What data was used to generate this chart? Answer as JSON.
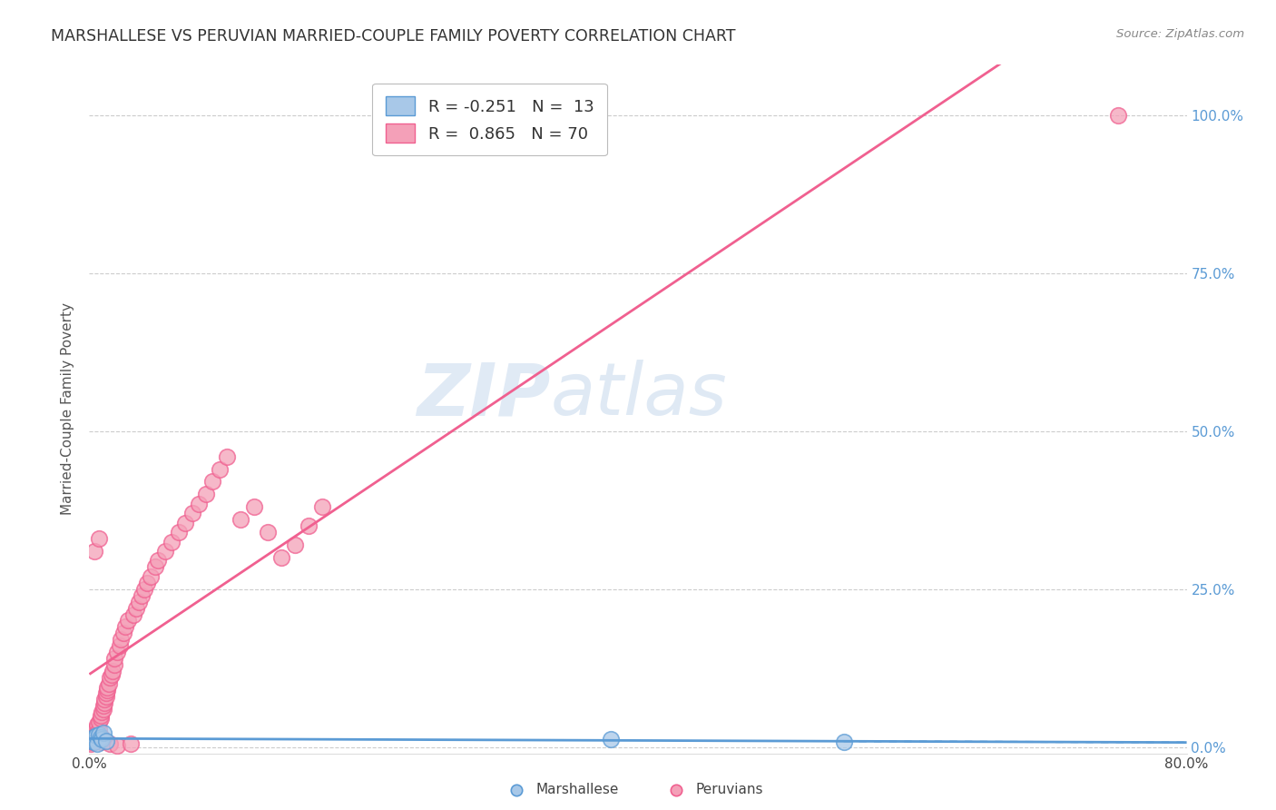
{
  "title": "MARSHALLESE VS PERUVIAN MARRIED-COUPLE FAMILY POVERTY CORRELATION CHART",
  "source": "Source: ZipAtlas.com",
  "ylabel": "Married-Couple Family Poverty",
  "legend_marshallese": "Marshallese",
  "legend_peruvians": "Peruvians",
  "legend_r_marsh": "-0.251",
  "legend_n_marsh": "13",
  "legend_r_peru": "0.865",
  "legend_n_peru": "70",
  "xlim": [
    0.0,
    0.8
  ],
  "ylim": [
    -0.01,
    1.08
  ],
  "yticks": [
    0.0,
    0.25,
    0.5,
    0.75,
    1.0
  ],
  "ytick_labels": [
    "0.0%",
    "25.0%",
    "50.0%",
    "75.0%",
    "100.0%"
  ],
  "xticks": [
    0.0,
    0.1,
    0.2,
    0.3,
    0.4,
    0.5,
    0.6,
    0.7,
    0.8
  ],
  "xtick_labels_show": [
    "0.0%",
    "",
    "",
    "",
    "",
    "",
    "",
    "",
    "80.0%"
  ],
  "watermark_zip": "ZIP",
  "watermark_atlas": "atlas",
  "color_marsh": "#a8c8e8",
  "color_peru": "#f4a0b8",
  "color_line_marsh": "#5b9bd5",
  "color_line_peru": "#f06090",
  "background": "#ffffff",
  "marsh_x": [
    0.001,
    0.002,
    0.003,
    0.004,
    0.005,
    0.006,
    0.007,
    0.008,
    0.009,
    0.01,
    0.012,
    0.38,
    0.55
  ],
  "marsh_y": [
    0.01,
    0.012,
    0.015,
    0.008,
    0.018,
    0.005,
    0.02,
    0.015,
    0.012,
    0.022,
    0.01,
    0.012,
    0.008
  ],
  "peru_x": [
    0.001,
    0.002,
    0.002,
    0.003,
    0.003,
    0.004,
    0.004,
    0.005,
    0.005,
    0.006,
    0.006,
    0.007,
    0.007,
    0.008,
    0.008,
    0.008,
    0.009,
    0.009,
    0.01,
    0.01,
    0.011,
    0.011,
    0.012,
    0.012,
    0.013,
    0.013,
    0.014,
    0.015,
    0.015,
    0.016,
    0.017,
    0.018,
    0.018,
    0.02,
    0.02,
    0.022,
    0.023,
    0.025,
    0.026,
    0.028,
    0.03,
    0.032,
    0.034,
    0.036,
    0.038,
    0.04,
    0.042,
    0.045,
    0.048,
    0.05,
    0.055,
    0.06,
    0.065,
    0.07,
    0.075,
    0.08,
    0.085,
    0.09,
    0.095,
    0.1,
    0.11,
    0.12,
    0.13,
    0.14,
    0.15,
    0.16,
    0.17,
    0.004,
    0.007,
    0.75
  ],
  "peru_y": [
    0.005,
    0.008,
    0.015,
    0.01,
    0.02,
    0.012,
    0.025,
    0.018,
    0.03,
    0.022,
    0.035,
    0.028,
    0.04,
    0.008,
    0.045,
    0.05,
    0.015,
    0.055,
    0.06,
    0.065,
    0.07,
    0.075,
    0.08,
    0.085,
    0.09,
    0.095,
    0.1,
    0.11,
    0.005,
    0.115,
    0.12,
    0.13,
    0.14,
    0.15,
    0.003,
    0.16,
    0.17,
    0.18,
    0.19,
    0.2,
    0.005,
    0.21,
    0.22,
    0.23,
    0.24,
    0.25,
    0.26,
    0.27,
    0.285,
    0.295,
    0.31,
    0.325,
    0.34,
    0.355,
    0.37,
    0.385,
    0.4,
    0.42,
    0.44,
    0.46,
    0.36,
    0.38,
    0.34,
    0.3,
    0.32,
    0.35,
    0.38,
    0.31,
    0.33,
    1.0
  ]
}
